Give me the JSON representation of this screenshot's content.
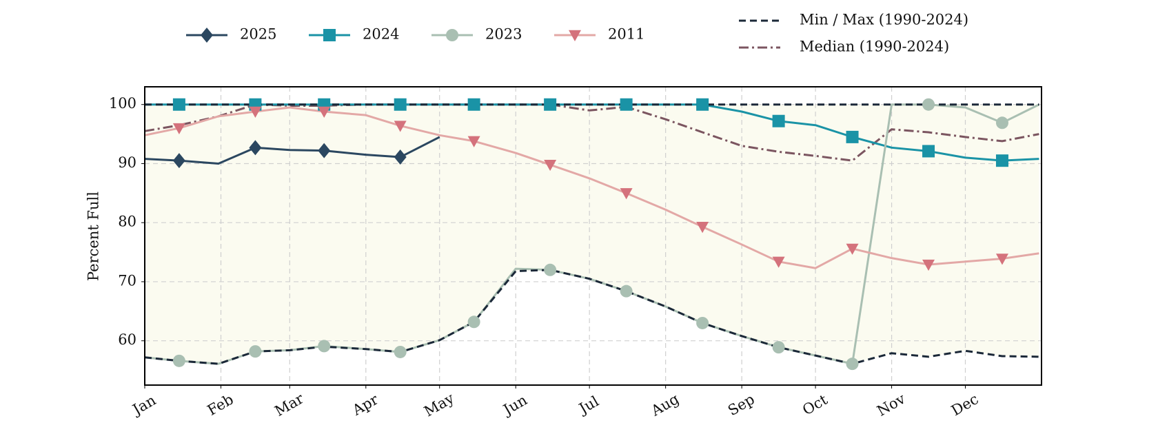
{
  "chart_data": {
    "type": "line",
    "y_label": "Percent Full",
    "x": [
      0,
      14,
      30,
      45,
      59,
      73,
      90,
      104,
      120,
      134,
      151,
      165,
      181,
      196,
      212,
      227,
      243,
      258,
      273,
      288,
      304,
      319,
      334,
      349,
      364
    ],
    "xlim": [
      0,
      365
    ],
    "xticks": [
      {
        "value": 0,
        "label": "Jan"
      },
      {
        "value": 31,
        "label": "Feb"
      },
      {
        "value": 59,
        "label": "Mar"
      },
      {
        "value": 90,
        "label": "Apr"
      },
      {
        "value": 120,
        "label": "May"
      },
      {
        "value": 151,
        "label": "Jun"
      },
      {
        "value": 181,
        "label": "Jul"
      },
      {
        "value": 212,
        "label": "Aug"
      },
      {
        "value": 243,
        "label": "Sep"
      },
      {
        "value": 273,
        "label": "Oct"
      },
      {
        "value": 304,
        "label": "Nov"
      },
      {
        "value": 334,
        "label": "Dec"
      }
    ],
    "ylim": [
      52.5,
      103
    ],
    "yticks": [
      60,
      70,
      80,
      90,
      100
    ],
    "grid": true,
    "band": {
      "name": "Min / Max (1990-2024)",
      "color": "#1b2838",
      "fill": "#fbfbf0",
      "min": [
        57.2,
        56.6,
        56.1,
        58.2,
        58.4,
        59,
        58.6,
        58.1,
        60.1,
        63.2,
        71.8,
        72,
        70.5,
        68.4,
        65.8,
        63,
        60.8,
        58.9,
        57.5,
        56.1,
        57.9,
        57.3,
        58.3,
        57.4,
        57.3
      ],
      "max": [
        100,
        100,
        100,
        100,
        100,
        100,
        100,
        100,
        100,
        100,
        100,
        100,
        100,
        100,
        100,
        100,
        100,
        100,
        100,
        100,
        100,
        100,
        100,
        100,
        100
      ]
    },
    "median": {
      "name": "Median (1990-2024)",
      "color": "#7b5560",
      "values": [
        95.5,
        96.5,
        98,
        100,
        99.8,
        99.8,
        100,
        100,
        100,
        100,
        100,
        100,
        99,
        99.6,
        97.5,
        95.3,
        93,
        92,
        91.3,
        90.5,
        95.8,
        95.3,
        94.5,
        93.8,
        95
      ]
    },
    "series": [
      {
        "name": "2025",
        "color": "#2b4760",
        "marker": "diamond",
        "values": [
          90.8,
          90.5,
          90,
          92.7,
          92.3,
          92.2,
          91.5,
          91.1,
          94.5,
          null,
          null,
          null,
          null,
          null,
          null,
          null,
          null,
          null,
          null,
          null,
          null,
          null,
          null,
          null,
          null
        ]
      },
      {
        "name": "2024",
        "color": "#1a93a6",
        "marker": "square",
        "values": [
          100,
          100,
          100,
          100,
          100,
          100,
          100,
          100,
          100,
          100,
          100,
          100,
          100,
          100,
          100,
          100,
          98.8,
          97.2,
          96.5,
          94.5,
          92.7,
          92.1,
          91,
          90.5,
          90.8
        ]
      },
      {
        "name": "2023",
        "color": "#a9bfb2",
        "marker": "circle",
        "values": [
          57.2,
          56.6,
          56.1,
          58.2,
          58.4,
          59.1,
          58.6,
          58.1,
          60.1,
          63.2,
          72.2,
          72,
          70.5,
          68.4,
          65.8,
          63,
          60.8,
          58.9,
          57.5,
          56.1,
          100,
          100,
          99.5,
          96.9,
          100
        ]
      },
      {
        "name": "2011",
        "color": "#d4727c",
        "line_color": "#e3a8a6",
        "marker": "triangle-down",
        "values": [
          94.8,
          96,
          98,
          98.8,
          99.5,
          98.8,
          98.2,
          96.4,
          94.8,
          93.8,
          91.8,
          89.8,
          87.5,
          85,
          82.2,
          79.3,
          76.3,
          73.4,
          72.3,
          75.6,
          74,
          72.9,
          73.4,
          73.9,
          74.8
        ]
      }
    ]
  }
}
